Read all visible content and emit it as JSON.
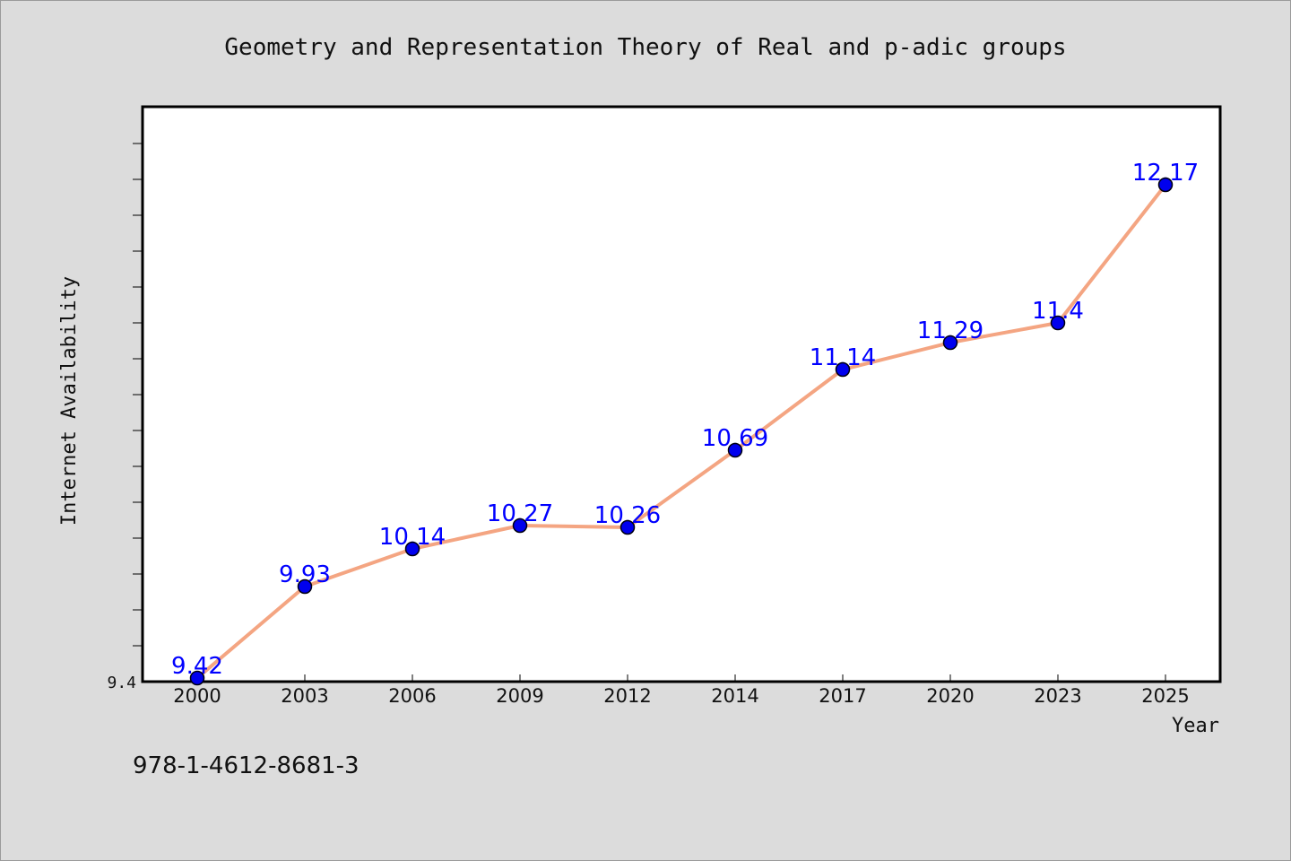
{
  "chart_data": {
    "type": "line",
    "title": "Geometry and Representation Theory of Real and p-adic groups",
    "xlabel": "Year",
    "ylabel": "Internet Availability",
    "categories": [
      "2000",
      "2003",
      "2006",
      "2009",
      "2012",
      "2014",
      "2017",
      "2020",
      "2023",
      "2025"
    ],
    "series": [
      {
        "values": [
          9.42,
          9.93,
          10.14,
          10.27,
          10.26,
          10.69,
          11.14,
          11.29,
          11.4,
          12.17
        ],
        "labels": [
          "9.42",
          "9.93",
          "10.14",
          "10.27",
          "10.26",
          "10.69",
          "11.14",
          "11.29",
          "11.4",
          "12.17"
        ]
      }
    ],
    "ylim": [
      9.4,
      12.6
    ],
    "yticklabels": [
      "9.4"
    ],
    "grid": false,
    "line_color": "#f4a582",
    "marker_color": "#0000ee",
    "label_color": "#0000ff"
  },
  "footer": {
    "isbn": "978-1-4612-8681-3"
  }
}
